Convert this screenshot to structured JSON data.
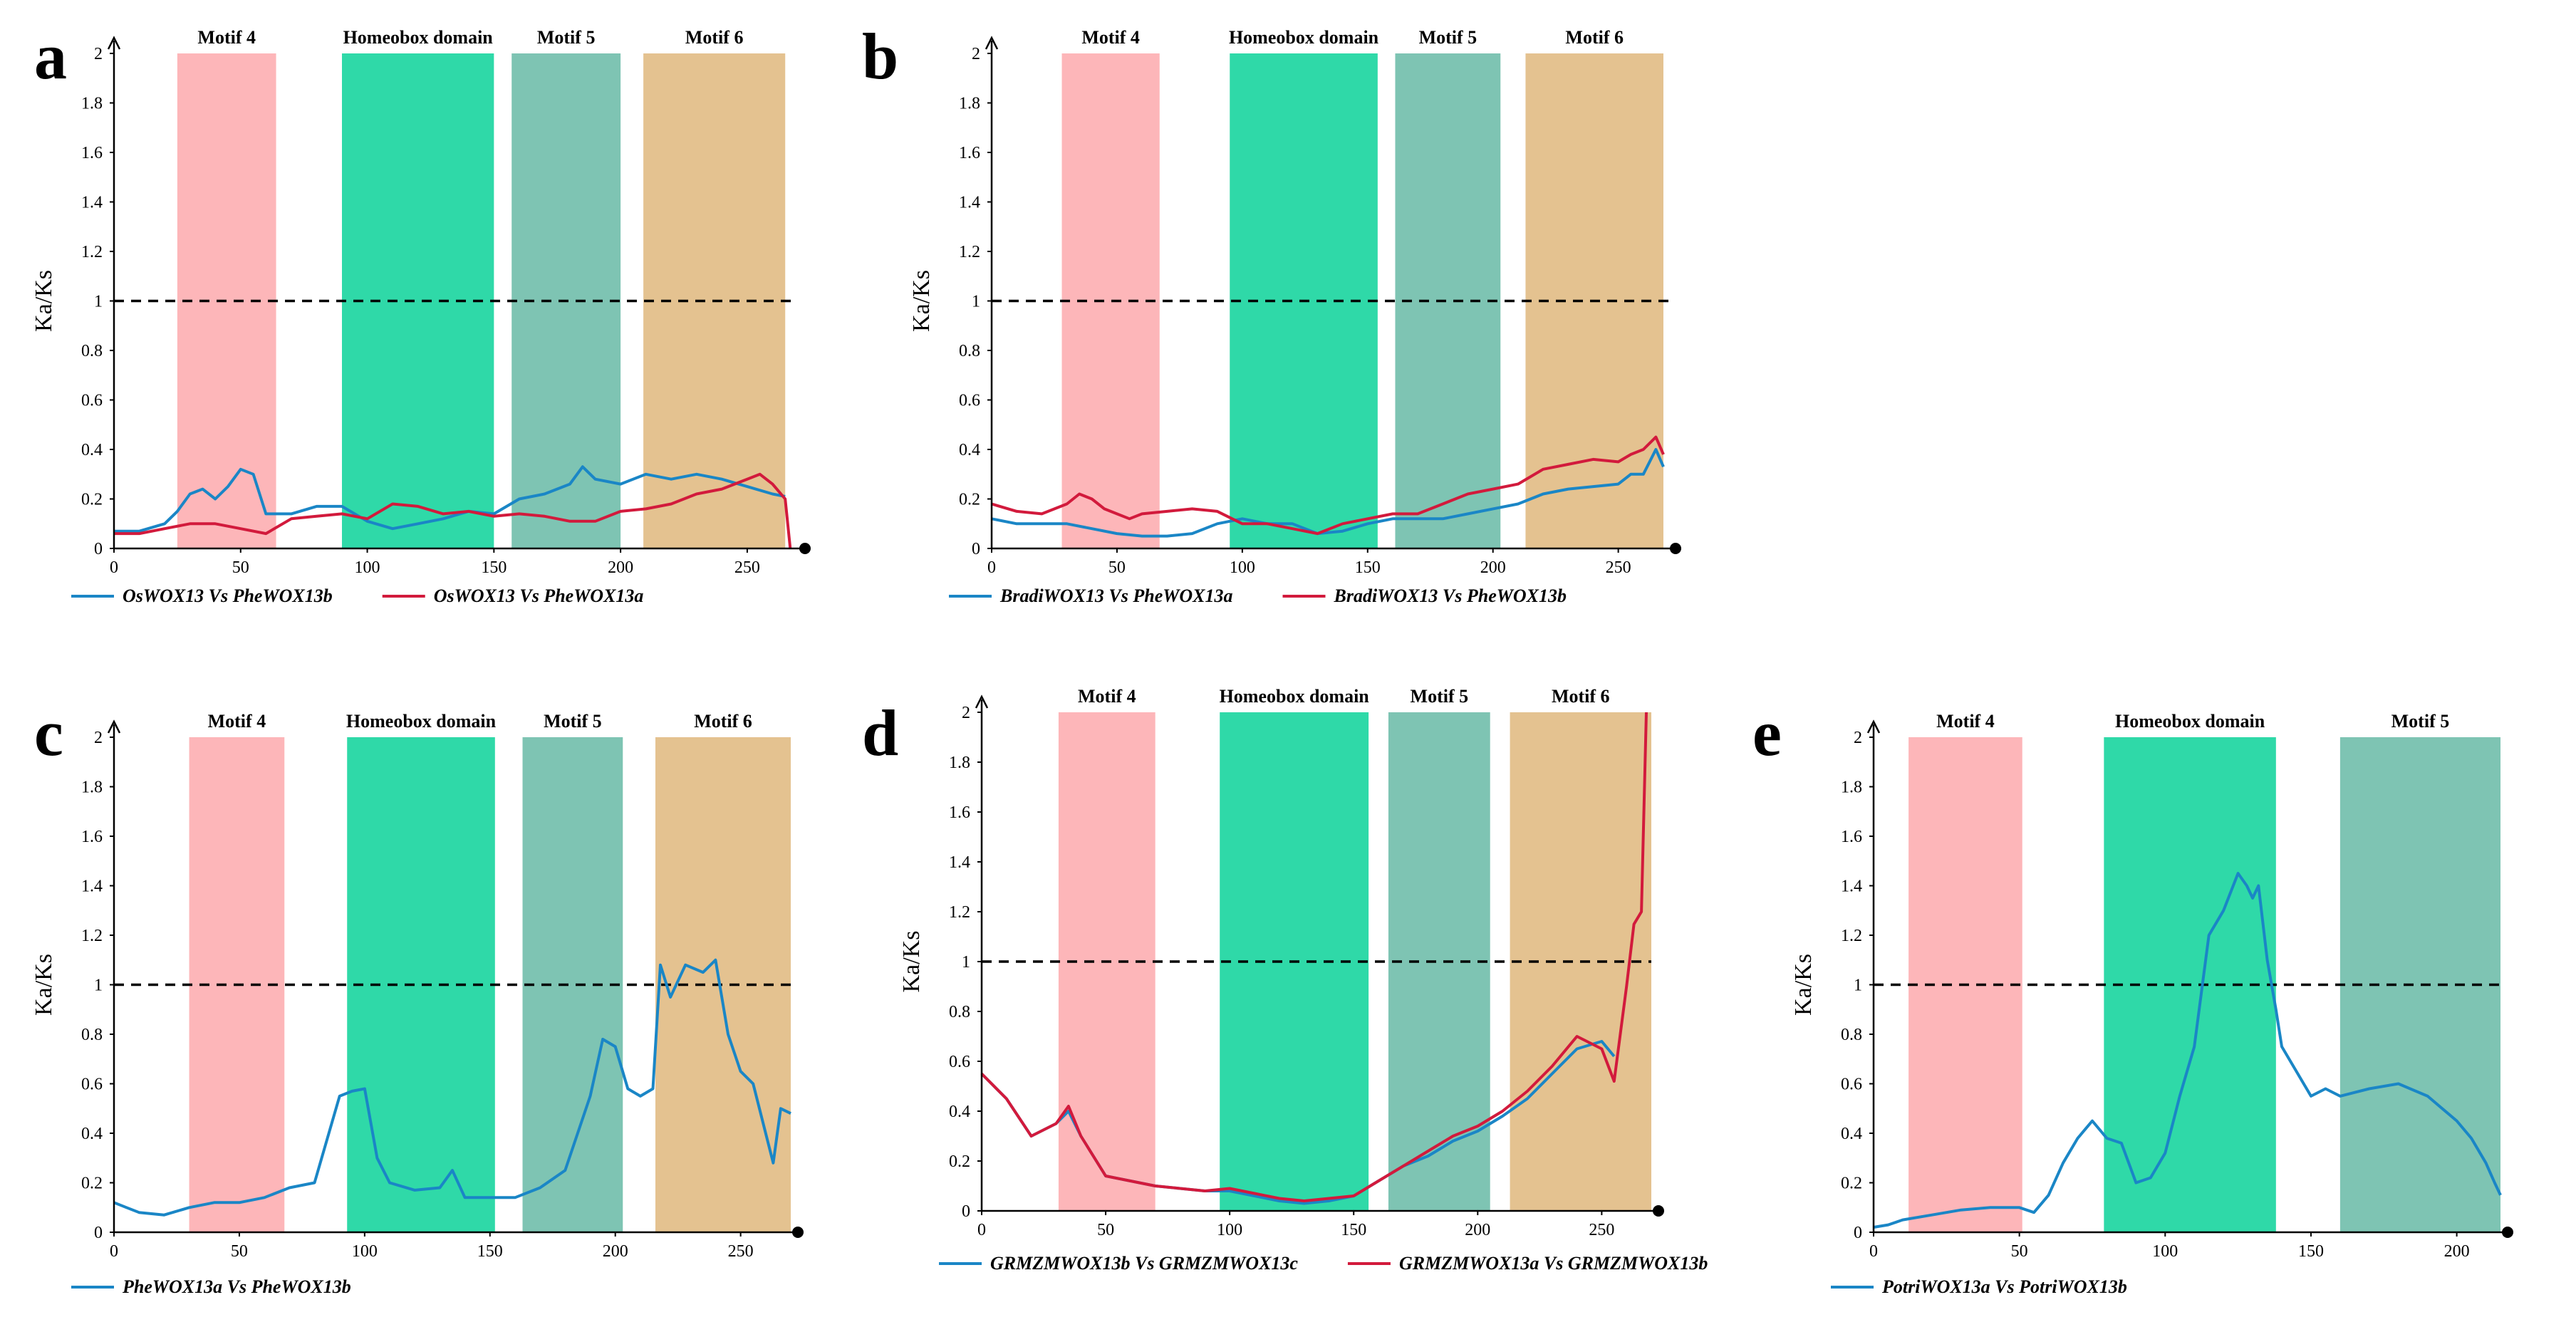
{
  "colors": {
    "pink": "#fdb6b9",
    "green": "#2fd9a8",
    "teal": "#7ec4b3",
    "tan": "#e4c290",
    "blue": "#1a86c6",
    "red": "#d21a3c",
    "axis": "#000000"
  },
  "chart_data": [
    {
      "id": "a",
      "type": "line",
      "panel_label": "a",
      "ylabel": "Ka/Ks",
      "ylim": [
        0,
        2
      ],
      "xlim": [
        0,
        270
      ],
      "xticks": [
        0,
        50,
        100,
        150,
        200,
        250
      ],
      "yticks": [
        "0",
        "0.2",
        "0.4",
        "0.6",
        "0.8",
        "1",
        "1.2",
        "1.4",
        "1.6",
        "1.8",
        "2"
      ],
      "reference_line": 1,
      "regions": [
        {
          "label": "Motif 4",
          "start": 25,
          "end": 64,
          "color": "pink"
        },
        {
          "label": "Homeobox domain",
          "start": 90,
          "end": 150,
          "color": "green"
        },
        {
          "label": "Motif 5",
          "start": 157,
          "end": 200,
          "color": "teal"
        },
        {
          "label": "Motif 6",
          "start": 209,
          "end": 265,
          "color": "tan"
        }
      ],
      "series": [
        {
          "name": "OsWOX13 Vs PheWOX13b",
          "color": "blue",
          "x": [
            0,
            10,
            20,
            25,
            30,
            35,
            40,
            45,
            50,
            55,
            60,
            70,
            80,
            90,
            100,
            110,
            120,
            130,
            140,
            150,
            160,
            170,
            180,
            185,
            190,
            200,
            210,
            220,
            230,
            240,
            250,
            260,
            265
          ],
          "y": [
            0.07,
            0.07,
            0.1,
            0.15,
            0.22,
            0.24,
            0.2,
            0.25,
            0.32,
            0.3,
            0.14,
            0.14,
            0.17,
            0.17,
            0.11,
            0.08,
            0.1,
            0.12,
            0.15,
            0.14,
            0.2,
            0.22,
            0.26,
            0.33,
            0.28,
            0.26,
            0.3,
            0.28,
            0.3,
            0.28,
            0.25,
            0.22,
            0.21
          ]
        },
        {
          "name": "OsWOX13 Vs PheWOX13a",
          "color": "red",
          "x": [
            0,
            10,
            20,
            30,
            40,
            50,
            60,
            70,
            80,
            90,
            100,
            110,
            120,
            130,
            140,
            150,
            160,
            170,
            180,
            190,
            200,
            210,
            220,
            230,
            240,
            250,
            255,
            260,
            265,
            267
          ],
          "y": [
            0.06,
            0.06,
            0.08,
            0.1,
            0.1,
            0.08,
            0.06,
            0.12,
            0.13,
            0.14,
            0.12,
            0.18,
            0.17,
            0.14,
            0.15,
            0.13,
            0.14,
            0.13,
            0.11,
            0.11,
            0.15,
            0.16,
            0.18,
            0.22,
            0.24,
            0.28,
            0.3,
            0.26,
            0.2,
            0.0
          ]
        }
      ]
    },
    {
      "id": "b",
      "type": "line",
      "panel_label": "b",
      "ylabel": "Ka/Ks",
      "ylim": [
        0,
        2
      ],
      "xlim": [
        0,
        270
      ],
      "xticks": [
        0,
        50,
        100,
        150,
        200,
        250
      ],
      "yticks": [
        "0",
        "0.2",
        "0.4",
        "0.6",
        "0.8",
        "1",
        "1.2",
        "1.4",
        "1.6",
        "1.8",
        "2"
      ],
      "reference_line": 1,
      "regions": [
        {
          "label": "Motif 4",
          "start": 28,
          "end": 67,
          "color": "pink"
        },
        {
          "label": "Homeobox domain",
          "start": 95,
          "end": 154,
          "color": "green"
        },
        {
          "label": "Motif 5",
          "start": 161,
          "end": 203,
          "color": "teal"
        },
        {
          "label": "Motif 6",
          "start": 213,
          "end": 268,
          "color": "tan"
        }
      ],
      "series": [
        {
          "name": "BradiWOX13 Vs PheWOX13a",
          "color": "blue",
          "x": [
            0,
            10,
            20,
            30,
            40,
            50,
            60,
            70,
            80,
            90,
            100,
            110,
            120,
            130,
            140,
            150,
            160,
            170,
            180,
            190,
            200,
            210,
            220,
            230,
            240,
            250,
            255,
            260,
            265,
            268
          ],
          "y": [
            0.12,
            0.1,
            0.1,
            0.1,
            0.08,
            0.06,
            0.05,
            0.05,
            0.06,
            0.1,
            0.12,
            0.1,
            0.1,
            0.06,
            0.07,
            0.1,
            0.12,
            0.12,
            0.12,
            0.14,
            0.16,
            0.18,
            0.22,
            0.24,
            0.25,
            0.26,
            0.3,
            0.3,
            0.4,
            0.33
          ]
        },
        {
          "name": "BradiWOX13 Vs PheWOX13b",
          "color": "red",
          "x": [
            0,
            10,
            20,
            30,
            35,
            40,
            45,
            50,
            55,
            60,
            70,
            80,
            90,
            100,
            110,
            120,
            130,
            140,
            150,
            160,
            170,
            180,
            190,
            200,
            210,
            220,
            230,
            240,
            250,
            255,
            260,
            265,
            268
          ],
          "y": [
            0.18,
            0.15,
            0.14,
            0.18,
            0.22,
            0.2,
            0.16,
            0.14,
            0.12,
            0.14,
            0.15,
            0.16,
            0.15,
            0.1,
            0.1,
            0.08,
            0.06,
            0.1,
            0.12,
            0.14,
            0.14,
            0.18,
            0.22,
            0.24,
            0.26,
            0.32,
            0.34,
            0.36,
            0.35,
            0.38,
            0.4,
            0.45,
            0.38
          ]
        }
      ]
    },
    {
      "id": "c",
      "type": "line",
      "panel_label": "c",
      "ylabel": "Ka/Ks",
      "ylim": [
        0,
        2
      ],
      "xlim": [
        0,
        270
      ],
      "xticks": [
        0,
        50,
        100,
        150,
        200,
        250
      ],
      "yticks": [
        "0",
        "0.2",
        "0.4",
        "0.6",
        "0.8",
        "1",
        "1.2",
        "1.4",
        "1.6",
        "1.8",
        "2"
      ],
      "reference_line": 1,
      "regions": [
        {
          "label": "Motif 4",
          "start": 30,
          "end": 68,
          "color": "pink"
        },
        {
          "label": "Homeobox domain",
          "start": 93,
          "end": 152,
          "color": "green"
        },
        {
          "label": "Motif 5",
          "start": 163,
          "end": 203,
          "color": "teal"
        },
        {
          "label": "Motif 6",
          "start": 216,
          "end": 270,
          "color": "tan"
        }
      ],
      "series": [
        {
          "name": "PheWOX13a Vs PheWOX13b",
          "color": "blue",
          "x": [
            0,
            5,
            10,
            20,
            30,
            40,
            50,
            60,
            70,
            80,
            90,
            95,
            100,
            105,
            110,
            120,
            130,
            135,
            140,
            150,
            160,
            170,
            180,
            190,
            195,
            200,
            205,
            210,
            215,
            218,
            222,
            228,
            235,
            240,
            245,
            250,
            255,
            260,
            263,
            266,
            270
          ],
          "y": [
            0.12,
            0.1,
            0.08,
            0.07,
            0.1,
            0.12,
            0.12,
            0.14,
            0.18,
            0.2,
            0.55,
            0.57,
            0.58,
            0.3,
            0.2,
            0.17,
            0.18,
            0.25,
            0.14,
            0.14,
            0.14,
            0.18,
            0.25,
            0.55,
            0.78,
            0.75,
            0.58,
            0.55,
            0.58,
            1.08,
            0.95,
            1.08,
            1.05,
            1.1,
            0.8,
            0.65,
            0.6,
            0.4,
            0.28,
            0.5,
            0.48
          ]
        }
      ]
    },
    {
      "id": "d",
      "type": "line",
      "panel_label": "d",
      "ylabel": "Ka/Ks",
      "ylim": [
        0,
        2
      ],
      "xlim": [
        0,
        270
      ],
      "xticks": [
        0,
        50,
        100,
        150,
        200,
        250
      ],
      "yticks": [
        "0",
        "0.2",
        "0.4",
        "0.6",
        "0.8",
        "1",
        "1.2",
        "1.4",
        "1.6",
        "1.8",
        "2"
      ],
      "reference_line": 1,
      "regions": [
        {
          "label": "Motif 4",
          "start": 31,
          "end": 70,
          "color": "pink"
        },
        {
          "label": "Homeobox domain",
          "start": 96,
          "end": 156,
          "color": "green"
        },
        {
          "label": "Motif 5",
          "start": 164,
          "end": 205,
          "color": "teal"
        },
        {
          "label": "Motif 6",
          "start": 213,
          "end": 270,
          "color": "tan"
        }
      ],
      "series": [
        {
          "name": "GRMZMWOX13b Vs GRMZMWOX13c",
          "color": "blue",
          "x": [
            0,
            10,
            20,
            30,
            35,
            40,
            50,
            60,
            70,
            80,
            90,
            100,
            110,
            120,
            130,
            140,
            150,
            160,
            170,
            180,
            190,
            200,
            210,
            220,
            230,
            240,
            250,
            255
          ],
          "y": [
            0.55,
            0.45,
            0.3,
            0.35,
            0.4,
            0.3,
            0.14,
            0.12,
            0.1,
            0.09,
            0.08,
            0.08,
            0.06,
            0.04,
            0.03,
            0.04,
            0.06,
            0.12,
            0.18,
            0.22,
            0.28,
            0.32,
            0.38,
            0.45,
            0.55,
            0.65,
            0.68,
            0.62
          ]
        },
        {
          "name": "GRMZMWOX13a Vs GRMZMWOX13b",
          "color": "red",
          "x": [
            0,
            10,
            20,
            30,
            35,
            40,
            50,
            60,
            70,
            80,
            90,
            100,
            110,
            120,
            130,
            140,
            150,
            160,
            170,
            180,
            190,
            200,
            210,
            220,
            230,
            240,
            250,
            255,
            260,
            263,
            266,
            268
          ],
          "y": [
            0.55,
            0.45,
            0.3,
            0.35,
            0.42,
            0.3,
            0.14,
            0.12,
            0.1,
            0.09,
            0.08,
            0.09,
            0.07,
            0.05,
            0.04,
            0.05,
            0.06,
            0.12,
            0.18,
            0.24,
            0.3,
            0.34,
            0.4,
            0.48,
            0.58,
            0.7,
            0.65,
            0.52,
            0.9,
            1.15,
            1.2,
            2.0
          ]
        }
      ]
    },
    {
      "id": "e",
      "type": "line",
      "panel_label": "e",
      "ylabel": "Ka/Ks",
      "ylim": [
        0,
        2
      ],
      "xlim": [
        0,
        215
      ],
      "xticks": [
        0,
        50,
        100,
        150,
        200
      ],
      "yticks": [
        "0",
        "0.2",
        "0.4",
        "0.6",
        "0.8",
        "1",
        "1.2",
        "1.4",
        "1.6",
        "1.8",
        "2"
      ],
      "reference_line": 1,
      "regions": [
        {
          "label": "Motif 4",
          "start": 12,
          "end": 51,
          "color": "pink"
        },
        {
          "label": "Homeobox domain",
          "start": 79,
          "end": 138,
          "color": "green"
        },
        {
          "label": "Motif 5",
          "start": 160,
          "end": 215,
          "color": "teal"
        }
      ],
      "series": [
        {
          "name": "PotriWOX13a Vs PotriWOX13b",
          "color": "blue",
          "x": [
            0,
            5,
            10,
            20,
            30,
            40,
            50,
            55,
            60,
            65,
            70,
            75,
            80,
            85,
            90,
            95,
            100,
            105,
            110,
            115,
            120,
            125,
            128,
            130,
            132,
            135,
            138,
            140,
            145,
            150,
            155,
            160,
            170,
            180,
            190,
            200,
            205,
            210,
            213,
            215
          ],
          "y": [
            0.02,
            0.03,
            0.05,
            0.07,
            0.09,
            0.1,
            0.1,
            0.08,
            0.15,
            0.28,
            0.38,
            0.45,
            0.38,
            0.36,
            0.2,
            0.22,
            0.32,
            0.55,
            0.75,
            1.2,
            1.3,
            1.45,
            1.4,
            1.35,
            1.4,
            1.1,
            0.9,
            0.75,
            0.65,
            0.55,
            0.58,
            0.55,
            0.58,
            0.6,
            0.55,
            0.45,
            0.38,
            0.28,
            0.2,
            0.15
          ]
        }
      ]
    }
  ]
}
